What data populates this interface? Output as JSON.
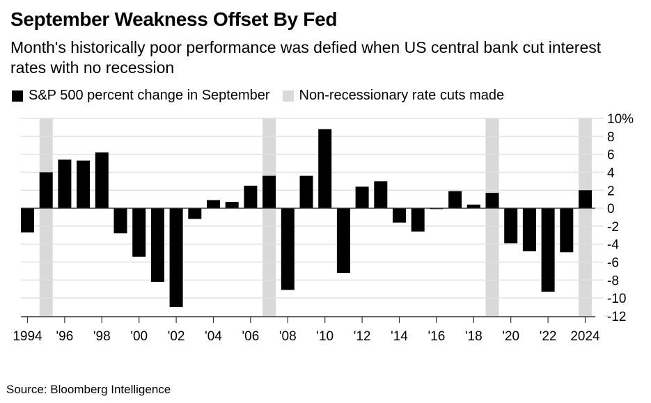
{
  "header": {
    "title": "September Weakness Offset By Fed",
    "subtitle": "Month's historically poor performance was defied when US central bank cut interest rates with no recession"
  },
  "legend": [
    {
      "label": "S&P 500 percent change in September",
      "color": "#000000"
    },
    {
      "label": "Non-recessionary rate cuts made",
      "color": "#d9d9d9"
    }
  ],
  "footer": {
    "source": "Source: Bloomberg Intelligence"
  },
  "chart_data": {
    "type": "bar",
    "title": "September Weakness Offset By Fed",
    "subtitle": "Month's historically poor performance was defied when US central bank cut interest rates with no recession",
    "xlabel": "",
    "ylabel": "",
    "ylim": [
      -12,
      10
    ],
    "yticks": [
      10,
      8,
      6,
      4,
      2,
      0,
      -2,
      -4,
      -6,
      -8,
      -10,
      -12
    ],
    "ytick_labels": [
      "10%",
      "8",
      "6",
      "4",
      "2",
      "0",
      "-2",
      "-4",
      "-6",
      "-8",
      "-10",
      "-12"
    ],
    "y_axis_position": "right",
    "grid": true,
    "legend_position": "top-left",
    "categories": [
      1994,
      1995,
      1996,
      1997,
      1998,
      1999,
      2000,
      2001,
      2002,
      2003,
      2004,
      2005,
      2006,
      2007,
      2008,
      2009,
      2010,
      2011,
      2012,
      2013,
      2014,
      2015,
      2016,
      2017,
      2018,
      2019,
      2020,
      2021,
      2022,
      2023,
      2024
    ],
    "xtick_years": [
      1994,
      1996,
      1998,
      2000,
      2002,
      2004,
      2006,
      2008,
      2010,
      2012,
      2014,
      2016,
      2018,
      2020,
      2022,
      2024
    ],
    "xtick_labels": [
      "1994",
      "'96",
      "'98",
      "'00",
      "'02",
      "'04",
      "'06",
      "'08",
      "'10",
      "'12",
      "'14",
      "'16",
      "'18",
      "'20",
      "'22",
      "2024"
    ],
    "series": [
      {
        "name": "S&P 500 percent change in September",
        "color": "#000000",
        "values": [
          -2.7,
          4.0,
          5.4,
          5.3,
          6.2,
          -2.8,
          -5.4,
          -8.2,
          -11.0,
          -1.2,
          0.9,
          0.7,
          2.5,
          3.6,
          -9.1,
          3.6,
          8.8,
          -7.2,
          2.4,
          3.0,
          -1.6,
          -2.6,
          -0.1,
          1.9,
          0.4,
          1.7,
          -3.9,
          -4.8,
          -9.3,
          -4.9,
          2.0
        ]
      }
    ],
    "shaded_periods": {
      "name": "Non-recessionary rate cuts made",
      "color": "#d9d9d9",
      "years": [
        1995,
        2007,
        2019,
        2024
      ]
    }
  }
}
